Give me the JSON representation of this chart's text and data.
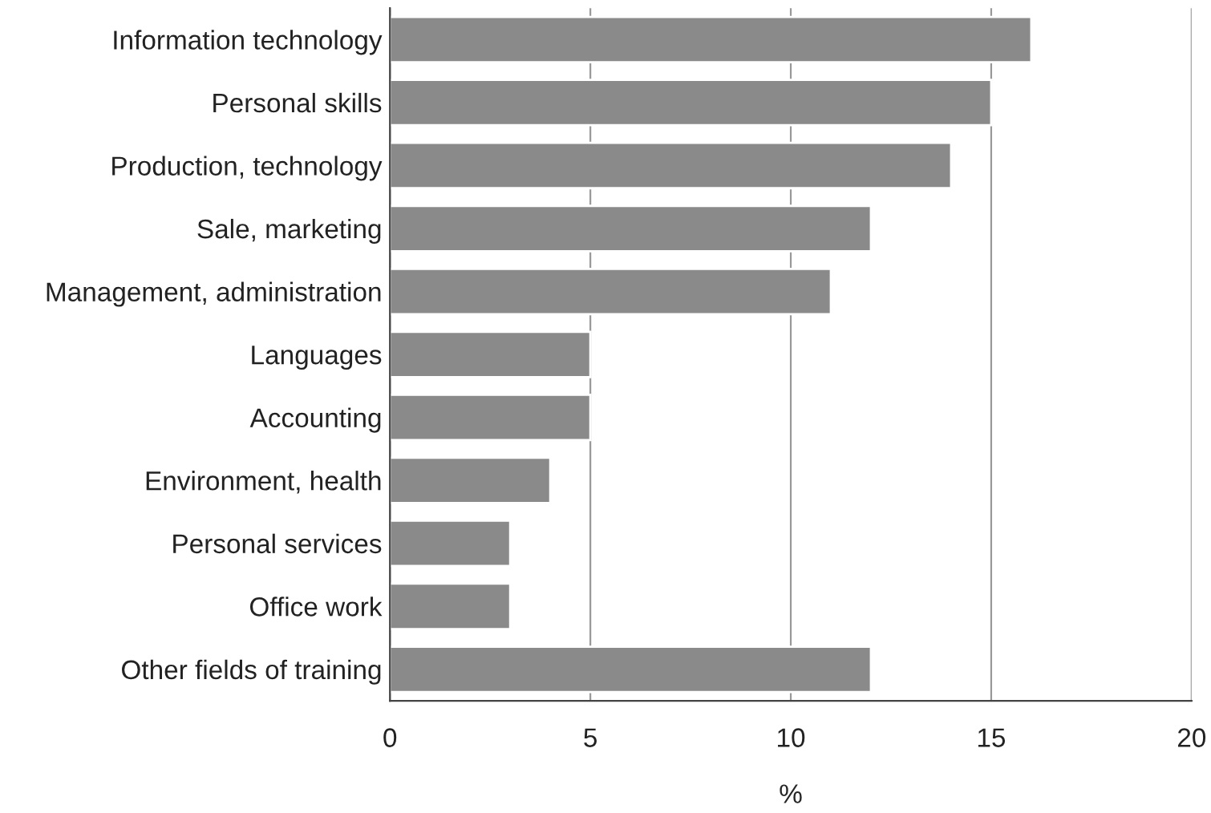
{
  "chart_data": {
    "type": "bar",
    "orientation": "horizontal",
    "xlabel": "%",
    "categories": [
      "Information technology",
      "Personal skills",
      "Production, technology",
      "Sale, marketing",
      "Management, administration",
      "Languages",
      "Accounting",
      "Environment, health",
      "Personal services",
      "Office work",
      "Other fields of training"
    ],
    "values": [
      16,
      15,
      14,
      12,
      11,
      5,
      5,
      4,
      3,
      3,
      12
    ],
    "color": "#8a8a8a",
    "xlim": [
      0,
      20
    ],
    "xticks": [
      0,
      5,
      10,
      15,
      20
    ],
    "grid": "x"
  }
}
